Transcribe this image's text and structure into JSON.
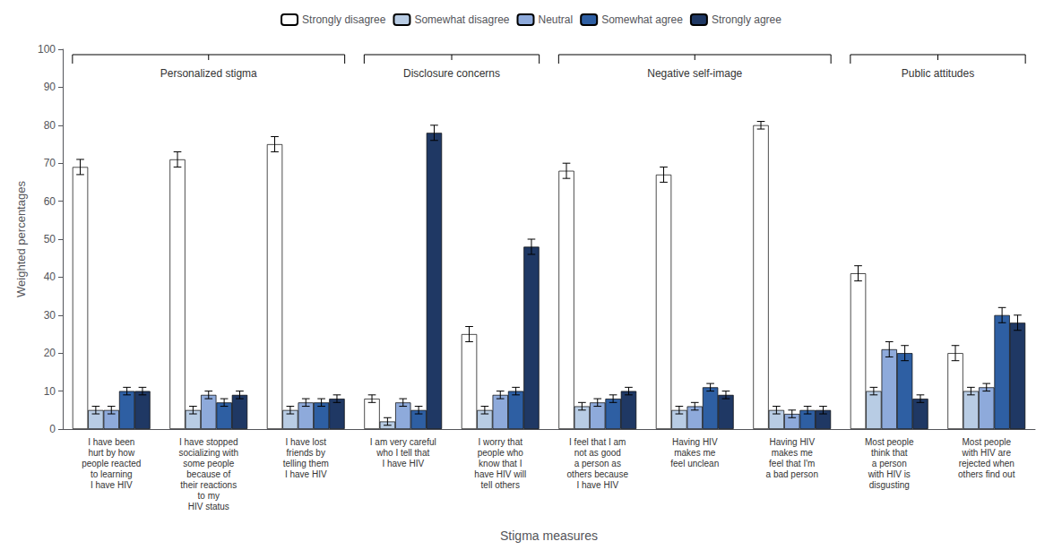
{
  "chart_data": {
    "type": "bar",
    "xlabel": "Stigma measures",
    "ylabel": "Weighted percentages",
    "categories": [
      "I have been\nhurt by how\npeople reacted\nto learning\nI have HIV",
      "I have stopped\nsocializing with\nsome people\nbecause of\ntheir reactions\nto my\nHIV status",
      "I have lost\nfriends by\ntelling them\nI have HIV",
      "I am very careful\nwho I tell that\nI have HIV",
      "I worry that\npeople who\nknow that I\nhave HIV will\ntell others",
      "I feel that I am\nnot as good\na person as\nothers because\nI have HIV",
      "Having HIV\nmakes me\nfeel unclean",
      "Having HIV\nmakes me\nfeel that I'm\na bad person",
      "Most people\nthink that\na person\nwith HIV is\ndisgusting",
      "Most people\nwith HIV are\nrejected when\nothers find out"
    ],
    "series": [
      {
        "name": "Strongly disagree",
        "color": "#ffffff",
        "values": [
          69,
          71,
          75,
          8,
          25,
          68,
          67,
          80,
          41,
          20
        ],
        "errors": [
          2,
          2,
          2,
          1,
          2,
          2,
          2,
          1,
          2,
          2
        ]
      },
      {
        "name": "Somewhat disagree",
        "color": "#b8cce4",
        "values": [
          5,
          5,
          5,
          2,
          5,
          6,
          5,
          5,
          10,
          10
        ],
        "errors": [
          1,
          1,
          1,
          1,
          1,
          1,
          1,
          1,
          1,
          1
        ]
      },
      {
        "name": "Neutral",
        "color": "#8eaadb",
        "values": [
          5,
          9,
          7,
          7,
          9,
          7,
          6,
          4,
          21,
          11
        ],
        "errors": [
          1,
          1,
          1,
          1,
          1,
          1,
          1,
          1,
          2,
          1
        ]
      },
      {
        "name": "Somewhat agree",
        "color": "#2e5fa3",
        "values": [
          10,
          7,
          7,
          5,
          10,
          8,
          11,
          5,
          20,
          30
        ],
        "errors": [
          1,
          1,
          1,
          1,
          1,
          1,
          1,
          1,
          2,
          2
        ]
      },
      {
        "name": "Strongly agree",
        "color": "#1f3864",
        "values": [
          10,
          9,
          8,
          78,
          48,
          10,
          9,
          5,
          8,
          28
        ],
        "errors": [
          1,
          1,
          1,
          2,
          2,
          1,
          1,
          1,
          1,
          2
        ]
      }
    ],
    "groups": [
      {
        "label": "Personalized stigma",
        "span": [
          0,
          2
        ]
      },
      {
        "label": "Disclosure concerns",
        "span": [
          3,
          4
        ]
      },
      {
        "label": "Negative self-image",
        "span": [
          5,
          7
        ]
      },
      {
        "label": "Public attitudes",
        "span": [
          8,
          9
        ]
      }
    ],
    "ylim": [
      0,
      100
    ],
    "yticks": [
      0,
      10,
      20,
      30,
      40,
      50,
      60,
      70,
      80,
      90,
      100
    ],
    "legend": "top",
    "grid": false
  }
}
